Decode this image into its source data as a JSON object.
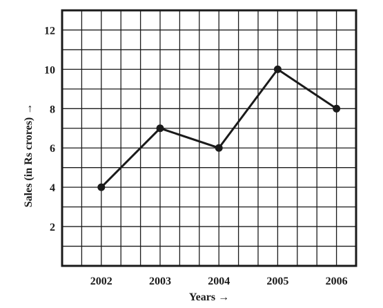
{
  "chart_data": {
    "type": "line",
    "x": [
      "2002",
      "2003",
      "2004",
      "2005",
      "2006"
    ],
    "y": [
      4,
      7,
      6,
      10,
      8
    ],
    "xlabel": "Years →",
    "ylabel": "Sales (in Rs crores) →",
    "yticks": [
      "2",
      "4",
      "6",
      "8",
      "10",
      "12"
    ],
    "ylim": [
      0,
      13
    ],
    "grid": true,
    "line_color": "#1a1a1a"
  }
}
